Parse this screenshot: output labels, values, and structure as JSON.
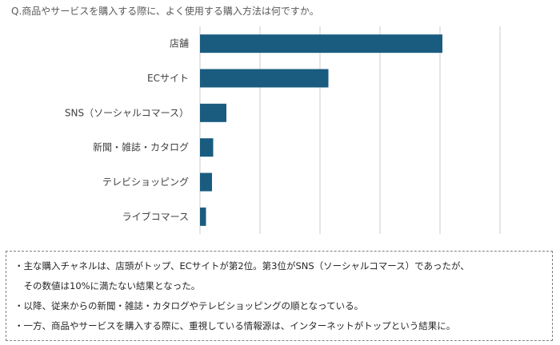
{
  "title": "Q.商品やサービスを購入する際に、よく使用する購入方法は何ですか。",
  "chart_data": {
    "type": "bar",
    "orientation": "horizontal",
    "categories": [
      "店舗",
      "ECサイト",
      "SNS（ソーシャルコマース）",
      "新聞・雑誌・カタログ",
      "テレビショッピング",
      "ライブコマース"
    ],
    "values": [
      40.4,
      21.4,
      4.4,
      2.2,
      2.0,
      1.0
    ],
    "xlim": [
      0,
      50
    ],
    "grid": true,
    "tick_labels_shown": false,
    "bar_color": "#1a5c80",
    "grid_color": "#d9d9d9"
  },
  "notes": [
    "・主な購入チャネルは、店頭がトップ、ECサイトが第2位。第3位がSNS（ソーシャルコマース）であったが、",
    "　その数値は10%に満たない結果となった。",
    "・以降、従来からの新聞・雑誌・カタログやテレビショッピングの順となっている。",
    "・一方、商品やサービスを購入する際に、重視している情報源は、インターネットがトップという結果に。"
  ]
}
